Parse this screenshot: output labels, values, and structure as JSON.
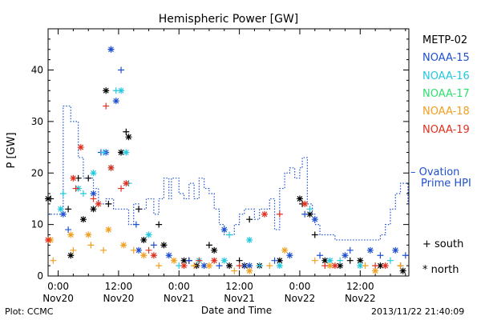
{
  "chart_data": {
    "type": "scatter",
    "title": "Hemispheric Power [GW]",
    "xlabel": "Date and Time",
    "ylabel": "P [GW]",
    "xlim": [
      "2013-11-19 22:00",
      "2013-11-22 21:40"
    ],
    "ylim": [
      0,
      48
    ],
    "y_ticks": [
      0,
      10,
      20,
      30,
      40
    ],
    "x_ticks": [
      {
        "time": "2013-11-20 00:00",
        "top": "0:00",
        "bottom": "Nov20"
      },
      {
        "time": "2013-11-20 12:00",
        "top": "12:00",
        "bottom": "Nov20"
      },
      {
        "time": "2013-11-21 00:00",
        "top": "0:00",
        "bottom": "Nov21"
      },
      {
        "time": "2013-11-21 12:00",
        "top": "12:00",
        "bottom": "Nov21"
      },
      {
        "time": "2013-11-22 00:00",
        "top": "0:00",
        "bottom": "Nov22"
      },
      {
        "time": "2013-11-22 12:00",
        "top": "12:00",
        "bottom": "Nov22"
      }
    ],
    "grid": false,
    "legend_position": "right",
    "marker_legend": [
      {
        "symbol": "+",
        "label": "south"
      },
      {
        "symbol": "*",
        "label": "north"
      }
    ],
    "ovation": {
      "name": "Ovation Prime HPI",
      "label_lines": [
        "– Ovation",
        "Prime HPI"
      ],
      "color": "#1e50d0",
      "style": "dotted-step",
      "points": [
        [
          "2013-11-19 22:00",
          12
        ],
        [
          "2013-11-20 01:00",
          33
        ],
        [
          "2013-11-20 02:30",
          30
        ],
        [
          "2013-11-20 04:00",
          23
        ],
        [
          "2013-11-20 05:00",
          19
        ],
        [
          "2013-11-20 07:00",
          17
        ],
        [
          "2013-11-20 08:00",
          14
        ],
        [
          "2013-11-20 09:30",
          15
        ],
        [
          "2013-11-20 11:00",
          13
        ],
        [
          "2013-11-20 14:00",
          10
        ],
        [
          "2013-11-20 15:00",
          14
        ],
        [
          "2013-11-20 16:00",
          13
        ],
        [
          "2013-11-20 17:30",
          15
        ],
        [
          "2013-11-20 19:00",
          12
        ],
        [
          "2013-11-20 20:00",
          15
        ],
        [
          "2013-11-20 21:00",
          19
        ],
        [
          "2013-11-20 22:00",
          15
        ],
        [
          "2013-11-20 22:30",
          19
        ],
        [
          "2013-11-21 00:00",
          16
        ],
        [
          "2013-11-21 01:00",
          15
        ],
        [
          "2013-11-21 02:00",
          18
        ],
        [
          "2013-11-21 03:00",
          15
        ],
        [
          "2013-11-21 04:00",
          19
        ],
        [
          "2013-11-21 05:00",
          17
        ],
        [
          "2013-11-21 06:00",
          16
        ],
        [
          "2013-11-21 07:00",
          13
        ],
        [
          "2013-11-21 08:00",
          10
        ],
        [
          "2013-11-21 09:00",
          8
        ],
        [
          "2013-11-21 11:00",
          10
        ],
        [
          "2013-11-21 12:00",
          12
        ],
        [
          "2013-11-21 13:00",
          13
        ],
        [
          "2013-11-21 15:00",
          11
        ],
        [
          "2013-11-21 16:00",
          13
        ],
        [
          "2013-11-21 18:00",
          15
        ],
        [
          "2013-11-21 19:00",
          9
        ],
        [
          "2013-11-21 20:00",
          17
        ],
        [
          "2013-11-21 21:00",
          20
        ],
        [
          "2013-11-21 22:00",
          21
        ],
        [
          "2013-11-21 23:00",
          19
        ],
        [
          "2013-11-22 00:00",
          21
        ],
        [
          "2013-11-22 00:30",
          23
        ],
        [
          "2013-11-22 01:30",
          14
        ],
        [
          "2013-11-22 02:30",
          12
        ],
        [
          "2013-11-22 03:00",
          10
        ],
        [
          "2013-11-22 04:00",
          8
        ],
        [
          "2013-11-22 07:00",
          7
        ],
        [
          "2013-11-22 16:00",
          8
        ],
        [
          "2013-11-22 17:00",
          10
        ],
        [
          "2013-11-22 18:00",
          13
        ],
        [
          "2013-11-22 19:00",
          16
        ],
        [
          "2013-11-22 20:00",
          18
        ],
        [
          "2013-11-22 21:30",
          14
        ]
      ]
    },
    "series": [
      {
        "name": "METP-02",
        "color": "#000000",
        "south": [
          [
            "2013-11-19 22:30",
            15
          ],
          [
            "2013-11-20 02:00",
            13
          ],
          [
            "2013-11-20 04:00",
            19
          ],
          [
            "2013-11-20 06:00",
            19
          ],
          [
            "2013-11-20 10:00",
            14
          ],
          [
            "2013-11-20 13:30",
            28
          ],
          [
            "2013-11-20 16:00",
            13
          ],
          [
            "2013-11-20 20:00",
            10
          ],
          [
            "2013-11-21 02:00",
            3
          ],
          [
            "2013-11-21 06:00",
            6
          ],
          [
            "2013-11-21 12:00",
            3
          ],
          [
            "2013-11-21 14:00",
            11
          ],
          [
            "2013-11-22 00:30",
            14
          ],
          [
            "2013-11-22 03:00",
            8
          ],
          [
            "2013-11-22 10:00",
            3
          ],
          [
            "2013-11-22 20:00",
            2
          ]
        ],
        "north": [
          [
            "2013-11-19 22:00",
            15
          ],
          [
            "2013-11-20 02:30",
            4
          ],
          [
            "2013-11-20 05:00",
            11
          ],
          [
            "2013-11-20 07:00",
            13
          ],
          [
            "2013-11-20 09:30",
            36
          ],
          [
            "2013-11-20 12:30",
            24
          ],
          [
            "2013-11-20 14:00",
            27
          ],
          [
            "2013-11-20 17:00",
            7
          ],
          [
            "2013-11-20 21:00",
            6
          ],
          [
            "2013-11-21 01:00",
            3
          ],
          [
            "2013-11-21 03:30",
            2
          ],
          [
            "2013-11-21 07:00",
            5
          ],
          [
            "2013-11-21 10:00",
            2
          ],
          [
            "2013-11-21 13:00",
            2
          ],
          [
            "2013-11-21 16:00",
            2
          ],
          [
            "2013-11-21 20:00",
            3
          ],
          [
            "2013-11-22 00:00",
            15
          ],
          [
            "2013-11-22 02:00",
            12
          ],
          [
            "2013-11-22 05:00",
            3
          ],
          [
            "2013-11-22 08:00",
            2
          ],
          [
            "2013-11-22 12:00",
            3
          ],
          [
            "2013-11-22 16:00",
            2
          ],
          [
            "2013-11-22 20:30",
            1
          ]
        ]
      },
      {
        "name": "NOAA-15",
        "color": "#1e50d0",
        "south": [
          [
            "2013-11-20 02:00",
            9
          ],
          [
            "2013-11-20 08:30",
            24
          ],
          [
            "2013-11-20 10:30",
            44
          ],
          [
            "2013-11-20 12:30",
            40
          ],
          [
            "2013-11-20 15:30",
            10
          ],
          [
            "2013-11-20 19:00",
            6
          ],
          [
            "2013-11-21 02:00",
            3
          ],
          [
            "2013-11-21 08:00",
            2
          ],
          [
            "2013-11-21 13:00",
            2
          ],
          [
            "2013-11-21 19:00",
            3
          ],
          [
            "2013-11-22 01:00",
            12
          ],
          [
            "2013-11-22 04:00",
            4
          ],
          [
            "2013-11-22 10:00",
            5
          ],
          [
            "2013-11-22 16:00",
            4
          ],
          [
            "2013-11-22 21:00",
            4
          ]
        ],
        "north": [
          [
            "2013-11-20 01:00",
            12
          ],
          [
            "2013-11-20 07:00",
            16
          ],
          [
            "2013-11-20 09:30",
            24
          ],
          [
            "2013-11-20 10:30",
            44
          ],
          [
            "2013-11-20 11:30",
            34
          ],
          [
            "2013-11-20 16:00",
            5
          ],
          [
            "2013-11-20 22:00",
            4
          ],
          [
            "2013-11-21 05:00",
            2
          ],
          [
            "2013-11-21 09:00",
            9
          ],
          [
            "2013-11-21 14:00",
            2
          ],
          [
            "2013-11-21 22:00",
            4
          ],
          [
            "2013-11-22 03:00",
            11
          ],
          [
            "2013-11-22 09:00",
            4
          ],
          [
            "2013-11-22 14:00",
            5
          ],
          [
            "2013-11-22 19:00",
            5
          ]
        ]
      },
      {
        "name": "NOAA-16",
        "color": "#22c8e0",
        "south": [
          [
            "2013-11-20 01:00",
            16
          ],
          [
            "2013-11-20 05:00",
            16
          ],
          [
            "2013-11-20 09:00",
            24
          ],
          [
            "2013-11-20 11:30",
            36
          ],
          [
            "2013-11-20 14:00",
            18
          ],
          [
            "2013-11-21 00:00",
            2
          ],
          [
            "2013-11-21 10:00",
            8
          ],
          [
            "2013-11-21 16:00",
            2
          ],
          [
            "2013-11-22 02:00",
            13
          ],
          [
            "2013-11-22 08:00",
            3
          ],
          [
            "2013-11-22 18:00",
            3
          ]
        ],
        "north": [
          [
            "2013-11-20 00:30",
            13
          ],
          [
            "2013-11-20 04:00",
            17
          ],
          [
            "2013-11-20 07:00",
            20
          ],
          [
            "2013-11-20 10:30",
            21
          ],
          [
            "2013-11-20 12:30",
            36
          ],
          [
            "2013-11-20 13:30",
            24
          ],
          [
            "2013-11-20 18:00",
            8
          ],
          [
            "2013-11-21 04:00",
            3
          ],
          [
            "2013-11-21 09:00",
            3
          ],
          [
            "2013-11-21 14:00",
            7
          ],
          [
            "2013-11-21 20:00",
            2
          ],
          [
            "2013-11-22 06:00",
            3
          ],
          [
            "2013-11-22 12:00",
            2
          ]
        ]
      },
      {
        "name": "NOAA-17",
        "color": "#2ee070",
        "south": [],
        "north": []
      },
      {
        "name": "NOAA-18",
        "color": "#f0a020",
        "south": [
          [
            "2013-11-19 23:00",
            3
          ],
          [
            "2013-11-20 03:00",
            5
          ],
          [
            "2013-11-20 06:30",
            6
          ],
          [
            "2013-11-20 09:00",
            5
          ],
          [
            "2013-11-20 15:00",
            5
          ],
          [
            "2013-11-20 20:00",
            2
          ],
          [
            "2013-11-21 03:00",
            2
          ],
          [
            "2013-11-21 11:00",
            1
          ],
          [
            "2013-11-21 18:00",
            2
          ],
          [
            "2013-11-22 03:00",
            3
          ],
          [
            "2013-11-22 13:00",
            2
          ],
          [
            "2013-11-22 20:00",
            2
          ]
        ],
        "north": [
          [
            "2013-11-19 22:30",
            7
          ],
          [
            "2013-11-20 02:30",
            8
          ],
          [
            "2013-11-20 06:00",
            8
          ],
          [
            "2013-11-20 10:00",
            9
          ],
          [
            "2013-11-20 13:00",
            6
          ],
          [
            "2013-11-20 17:00",
            4
          ],
          [
            "2013-11-20 23:00",
            3
          ],
          [
            "2013-11-21 06:00",
            2
          ],
          [
            "2013-11-21 14:00",
            1
          ],
          [
            "2013-11-21 21:00",
            5
          ],
          [
            "2013-11-22 06:00",
            2
          ],
          [
            "2013-11-22 15:00",
            1
          ]
        ]
      },
      {
        "name": "NOAA-19",
        "color": "#e03020",
        "south": [
          [
            "2013-11-20 03:30",
            17
          ],
          [
            "2013-11-20 07:00",
            15
          ],
          [
            "2013-11-20 09:30",
            33
          ],
          [
            "2013-11-20 12:30",
            17
          ],
          [
            "2013-11-20 18:00",
            5
          ],
          [
            "2013-11-21 04:00",
            3
          ],
          [
            "2013-11-21 12:00",
            2
          ],
          [
            "2013-11-21 20:00",
            12
          ],
          [
            "2013-11-22 05:00",
            2
          ],
          [
            "2013-11-22 15:00",
            2
          ]
        ],
        "north": [
          [
            "2013-11-19 22:00",
            7
          ],
          [
            "2013-11-20 03:00",
            19
          ],
          [
            "2013-11-20 04:30",
            25
          ],
          [
            "2013-11-20 08:00",
            14
          ],
          [
            "2013-11-20 10:30",
            21
          ],
          [
            "2013-11-20 13:30",
            18
          ],
          [
            "2013-11-20 19:00",
            4
          ],
          [
            "2013-11-21 01:00",
            2
          ],
          [
            "2013-11-21 07:00",
            3
          ],
          [
            "2013-11-21 17:00",
            12
          ],
          [
            "2013-11-22 01:00",
            14
          ],
          [
            "2013-11-22 07:00",
            2
          ],
          [
            "2013-11-22 17:00",
            2
          ]
        ]
      }
    ]
  },
  "footer": {
    "plot_label": "Plot: CCMC",
    "timestamp": "2013/11/22 21:40:09"
  }
}
